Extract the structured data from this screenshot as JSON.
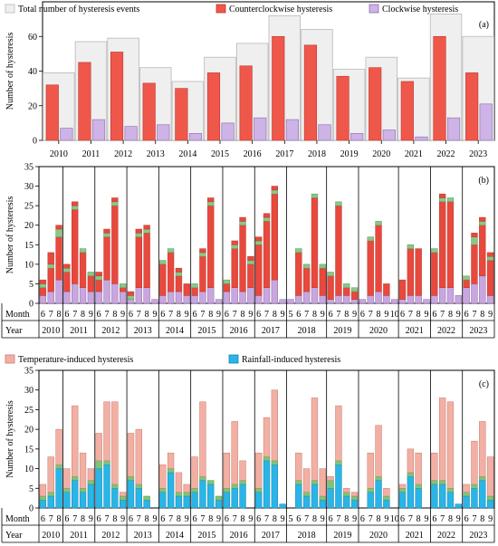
{
  "colors": {
    "total": "#efefef",
    "total_edge": "#b8b8b8",
    "ccw": "#f0574b",
    "ccw_edge": "#b73a2f",
    "cw": "#cdb3e6",
    "cw_edge": "#8a6aa8",
    "temp": "#f2b0a4",
    "temp_edge": "#c87a6e",
    "rain": "#29b5e8",
    "rain_edge": "#1d7fa8",
    "other": "#7cc47c",
    "bar_c_other_label": "",
    "b_red": "#e8483d",
    "b_purple": "#c9a6e0",
    "b_green": "#8cc68a"
  },
  "chart_data": [
    {
      "id": "a",
      "type": "bar",
      "panel_label": "(a)",
      "ylabel": "Number of hysteresis",
      "ylim": [
        0,
        80
      ],
      "yticks": [
        0,
        20,
        40,
        60
      ],
      "grid": false,
      "legend_position": "top",
      "categories": [
        "2010",
        "2011",
        "2012",
        "2013",
        "2014",
        "2015",
        "2016",
        "2017",
        "2018",
        "2019",
        "2020",
        "2021",
        "2022",
        "2023"
      ],
      "series": [
        {
          "name": "Total number of hysteresis events",
          "values": [
            39,
            57,
            59,
            42,
            34,
            48,
            56,
            72,
            64,
            41,
            48,
            36,
            73,
            60
          ]
        },
        {
          "name": "Counterclockwise hysteresis",
          "values": [
            32,
            45,
            51,
            33,
            30,
            39,
            43,
            60,
            55,
            37,
            42,
            34,
            60,
            39
          ]
        },
        {
          "name": "Clockwise hysteresis",
          "values": [
            7,
            12,
            8,
            9,
            4,
            10,
            13,
            12,
            9,
            4,
            6,
            2,
            13,
            21
          ]
        }
      ]
    },
    {
      "id": "b",
      "type": "bar",
      "panel_label": "(b)",
      "ylabel": "Number of hysteresis",
      "ylim": [
        0,
        35
      ],
      "yticks": [
        0,
        5,
        10,
        15,
        20,
        25,
        30,
        35
      ],
      "grid": false,
      "row_labels": {
        "month": "Month",
        "year": "Year"
      },
      "groups": [
        {
          "year": "2010",
          "months": [
            "6",
            "7",
            "8"
          ],
          "stacks": [
            [
              2,
              2,
              1,
              1
            ],
            [
              3,
              6,
              1,
              3
            ],
            [
              6,
              11,
              2,
              1
            ]
          ]
        },
        {
          "year": "2011",
          "months": [
            "6",
            "7",
            "8",
            "9"
          ],
          "stacks": [
            [
              3,
              5,
              1,
              1
            ],
            [
              5,
              19,
              1,
              1
            ],
            [
              4,
              9,
              1,
              0
            ],
            [
              3,
              4,
              1,
              0
            ]
          ]
        },
        {
          "year": "2012",
          "months": [
            "6",
            "7",
            "8",
            "9"
          ],
          "stacks": [
            [
              3,
              3,
              1,
              1
            ],
            [
              6,
              11,
              1,
              1
            ],
            [
              5,
              20,
              1,
              1
            ],
            [
              3,
              1,
              1,
              0
            ]
          ]
        },
        {
          "year": "2013",
          "months": [
            "6",
            "7",
            "8",
            "9"
          ],
          "stacks": [
            [
              1,
              0,
              1,
              1
            ],
            [
              4,
              13,
              1,
              1
            ],
            [
              4,
              14,
              1,
              1
            ],
            [
              1,
              0,
              0,
              0
            ]
          ]
        },
        {
          "year": "2014",
          "months": [
            "6",
            "7",
            "8",
            "9"
          ],
          "stacks": [
            [
              2,
              8,
              1,
              0
            ],
            [
              3,
              10,
              1,
              0
            ],
            [
              3,
              4,
              1,
              1
            ],
            [
              2,
              3,
              0,
              0
            ]
          ]
        },
        {
          "year": "2015",
          "months": [
            "6",
            "7",
            "8",
            "9"
          ],
          "stacks": [
            [
              2,
              2,
              1,
              0
            ],
            [
              3,
              9,
              1,
              1
            ],
            [
              4,
              21,
              1,
              1
            ],
            [
              1,
              0,
              0,
              0
            ]
          ]
        },
        {
          "year": "2016",
          "months": [
            "6",
            "7",
            "8",
            "9"
          ],
          "stacks": [
            [
              3,
              2,
              1,
              0
            ],
            [
              4,
              10,
              1,
              1
            ],
            [
              3,
              17,
              1,
              1
            ],
            [
              4,
              6,
              1,
              1
            ]
          ]
        },
        {
          "year": "2017",
          "months": [
            "6",
            "7",
            "8",
            "9"
          ],
          "stacks": [
            [
              2,
              13,
              1,
              1
            ],
            [
              4,
              17,
              1,
              1
            ],
            [
              6,
              22,
              1,
              1
            ],
            [
              1,
              0,
              0,
              0
            ]
          ]
        },
        {
          "year": "2018",
          "months": [
            "5",
            "6",
            "7",
            "8",
            "9"
          ],
          "stacks": [
            [
              1,
              0,
              0,
              0
            ],
            [
              2,
              11,
              1,
              0
            ],
            [
              3,
              6,
              1,
              0
            ],
            [
              4,
              23,
              1,
              0
            ],
            [
              2,
              7,
              1,
              0
            ]
          ]
        },
        {
          "year": "2019",
          "months": [
            "6",
            "7",
            "8",
            "9"
          ],
          "stacks": [
            [
              1,
              6,
              1,
              0
            ],
            [
              2,
              23,
              1,
              0
            ],
            [
              2,
              2,
              1,
              0
            ],
            [
              1,
              2,
              1,
              0
            ]
          ]
        },
        {
          "year": "2020",
          "months": [
            "6",
            "7",
            "8",
            "9",
            "10"
          ],
          "stacks": [
            [
              1,
              0,
              0,
              0
            ],
            [
              2,
              14,
              1,
              0
            ],
            [
              3,
              17,
              1,
              0
            ],
            [
              2,
              3,
              0,
              0
            ],
            [
              1,
              0,
              0,
              0
            ]
          ]
        },
        {
          "year": "2021",
          "months": [
            "6",
            "7",
            "8",
            "9"
          ],
          "stacks": [
            [
              1,
              5,
              0,
              0
            ],
            [
              2,
              12,
              1,
              0
            ],
            [
              2,
              12,
              0,
              0
            ],
            [
              1,
              0,
              0,
              0
            ]
          ]
        },
        {
          "year": "2022",
          "months": [
            "6",
            "7",
            "8",
            "9"
          ],
          "stacks": [
            [
              2,
              11,
              1,
              0
            ],
            [
              4,
              22,
              1,
              1
            ],
            [
              4,
              22,
              1,
              0
            ],
            [
              2,
              0,
              0,
              0
            ]
          ]
        },
        {
          "year": "2023",
          "months": [
            "6",
            "7",
            "8",
            "9"
          ],
          "stacks": [
            [
              4,
              2,
              1,
              0
            ],
            [
              5,
              10,
              2,
              1
            ],
            [
              7,
              13,
              1,
              1
            ],
            [
              2,
              9,
              1,
              1
            ]
          ]
        }
      ]
    },
    {
      "id": "c",
      "type": "bar",
      "panel_label": "(c)",
      "ylabel": "Number of hysteresis",
      "ylim": [
        0,
        35
      ],
      "yticks": [
        0,
        5,
        10,
        15,
        20,
        25,
        30,
        35
      ],
      "grid": false,
      "legend_position": "top",
      "row_labels": {
        "month": "Month",
        "year": "Year"
      },
      "series_names": [
        "Temperature-induced hysteresis",
        "Rainfall-induced hysteresis"
      ],
      "groups": [
        {
          "year": "2010",
          "months": [
            "6",
            "7",
            "8"
          ],
          "stacks": [
            [
              2,
              1,
              3
            ],
            [
              3,
              1,
              9
            ],
            [
              10,
              1,
              9
            ]
          ]
        },
        {
          "year": "2011",
          "months": [
            "6",
            "7",
            "8",
            "9"
          ],
          "stacks": [
            [
              4,
              1,
              5
            ],
            [
              7,
              1,
              18
            ],
            [
              4,
              1,
              9
            ],
            [
              6,
              1,
              3
            ]
          ]
        },
        {
          "year": "2012",
          "months": [
            "6",
            "7",
            "8",
            "9"
          ],
          "stacks": [
            [
              10,
              2,
              7
            ],
            [
              11,
              1,
              15
            ],
            [
              5,
              1,
              21
            ],
            [
              2,
              1,
              1
            ]
          ]
        },
        {
          "year": "2013",
          "months": [
            "6",
            "7",
            "8",
            "9"
          ],
          "stacks": [
            [
              7,
              1,
              11
            ],
            [
              5,
              1,
              14
            ],
            [
              2,
              1,
              0
            ],
            [
              0,
              0,
              0
            ]
          ]
        },
        {
          "year": "2014",
          "months": [
            "6",
            "7",
            "8",
            "9"
          ],
          "stacks": [
            [
              4,
              1,
              6
            ],
            [
              9,
              1,
              4
            ],
            [
              3,
              1,
              5
            ],
            [
              3,
              1,
              2
            ]
          ]
        },
        {
          "year": "2015",
          "months": [
            "6",
            "7",
            "8",
            "9"
          ],
          "stacks": [
            [
              4,
              1,
              8
            ],
            [
              7,
              1,
              19
            ],
            [
              6,
              1,
              0
            ],
            [
              2,
              1,
              0
            ]
          ]
        },
        {
          "year": "2016",
          "months": [
            "6",
            "7",
            "8",
            "9"
          ],
          "stacks": [
            [
              4,
              1,
              9
            ],
            [
              5,
              1,
              16
            ],
            [
              6,
              1,
              5
            ],
            [
              0,
              0,
              0
            ]
          ]
        },
        {
          "year": "2017",
          "months": [
            "6",
            "7",
            "8",
            "9"
          ],
          "stacks": [
            [
              4,
              1,
              9
            ],
            [
              12,
              1,
              10
            ],
            [
              11,
              1,
              18
            ],
            [
              1,
              0,
              0
            ]
          ]
        },
        {
          "year": "2018",
          "months": [
            "5",
            "6",
            "7",
            "8",
            "9"
          ],
          "stacks": [
            [
              0,
              0,
              0
            ],
            [
              6,
              1,
              7
            ],
            [
              3,
              1,
              6
            ],
            [
              6,
              1,
              21
            ],
            [
              2,
              1,
              7
            ]
          ]
        },
        {
          "year": "2019",
          "months": [
            "6",
            "7",
            "8",
            "9"
          ],
          "stacks": [
            [
              5,
              2,
              1
            ],
            [
              11,
              1,
              14
            ],
            [
              3,
              1,
              1
            ],
            [
              2,
              1,
              1
            ]
          ]
        },
        {
          "year": "2020",
          "months": [
            "6",
            "7",
            "8",
            "9",
            "10"
          ],
          "stacks": [
            [
              0,
              0,
              0
            ],
            [
              4,
              1,
              9
            ],
            [
              7,
              1,
              13
            ],
            [
              2,
              1,
              2
            ],
            [
              0,
              0,
              0
            ]
          ]
        },
        {
          "year": "2021",
          "months": [
            "6",
            "7",
            "8",
            "9"
          ],
          "stacks": [
            [
              4,
              1,
              1
            ],
            [
              8,
              1,
              6
            ],
            [
              5,
              1,
              8
            ],
            [
              0,
              0,
              0
            ]
          ]
        },
        {
          "year": "2022",
          "months": [
            "6",
            "7",
            "8",
            "9"
          ],
          "stacks": [
            [
              6,
              1,
              7
            ],
            [
              6,
              1,
              21
            ],
            [
              4,
              1,
              22
            ],
            [
              1,
              0,
              0
            ]
          ]
        },
        {
          "year": "2023",
          "months": [
            "6",
            "7",
            "8",
            "9"
          ],
          "stacks": [
            [
              3,
              1,
              2
            ],
            [
              5,
              1,
              11
            ],
            [
              7,
              1,
              14
            ],
            [
              2,
              1,
              10
            ]
          ]
        }
      ]
    }
  ]
}
